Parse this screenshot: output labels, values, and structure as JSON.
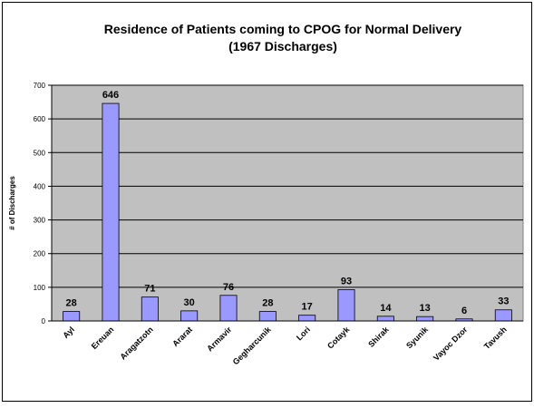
{
  "chart_data": {
    "type": "bar",
    "title": "Residence of Patients coming to CPOG for Normal Delivery",
    "subtitle": "(1967 Discharges)",
    "y_label": "# of Discharges",
    "categories": [
      "Ayl",
      "Ereuan",
      "Aragatzotn",
      "Ararat",
      "Armavir",
      "Gegharcunik",
      "Lori",
      "Cotayk",
      "Shirak",
      "Syunik",
      "Vayoc Dzor",
      "Tavush"
    ],
    "values": [
      28,
      646,
      71,
      30,
      76,
      28,
      17,
      93,
      14,
      13,
      6,
      33
    ],
    "color": "#9999ff",
    "plot_background": "#c0c0c0",
    "ylim": [
      0,
      700
    ],
    "yticks": [
      0,
      100,
      200,
      300,
      400,
      500,
      600,
      700
    ],
    "grid": true
  }
}
